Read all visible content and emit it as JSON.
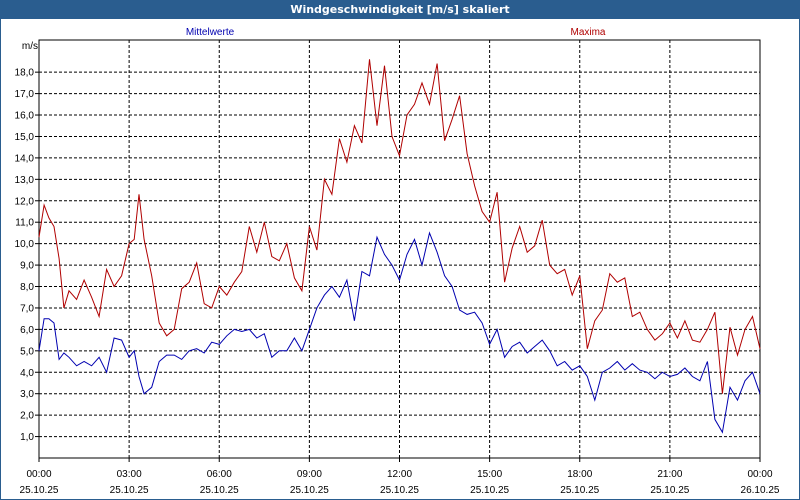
{
  "window": {
    "title": "Windgeschwindigkeit [m/s] skaliert"
  },
  "chart_data": {
    "type": "line",
    "title": "Windgeschwindigkeit [m/s] skaliert",
    "ylabel": "m/s",
    "ylim": [
      0,
      19.5
    ],
    "yticks": [
      1.0,
      2.0,
      3.0,
      4.0,
      5.0,
      6.0,
      7.0,
      8.0,
      9.0,
      10.0,
      11.0,
      12.0,
      13.0,
      14.0,
      15.0,
      16.0,
      17.0,
      18.0
    ],
    "ytick_labels": [
      "1,0",
      "2,0",
      "3,0",
      "4,0",
      "5,0",
      "6,0",
      "7,0",
      "8,0",
      "9,0",
      "10,0",
      "11,0",
      "12,0",
      "13,0",
      "14,0",
      "15,0",
      "16,0",
      "17,0",
      "18,0"
    ],
    "xlim_hours": [
      0,
      24
    ],
    "xticks_hours": [
      0,
      3,
      6,
      9,
      12,
      15,
      18,
      21,
      24
    ],
    "xtick_labels": [
      {
        "time": "00:00",
        "date": "25.10.25"
      },
      {
        "time": "03:00",
        "date": "25.10.25"
      },
      {
        "time": "06:00",
        "date": "25.10.25"
      },
      {
        "time": "09:00",
        "date": "25.10.25"
      },
      {
        "time": "12:00",
        "date": "25.10.25"
      },
      {
        "time": "15:00",
        "date": "25.10.25"
      },
      {
        "time": "18:00",
        "date": "25.10.25"
      },
      {
        "time": "21:00",
        "date": "25.10.25"
      },
      {
        "time": "00:00",
        "date": "26.10.25"
      }
    ],
    "grid": true,
    "series": [
      {
        "name": "Mittelwerte",
        "color": "#0000b0",
        "x_hours": [
          0,
          0.17,
          0.33,
          0.5,
          0.67,
          0.83,
          1,
          1.25,
          1.5,
          1.75,
          2,
          2.25,
          2.5,
          2.75,
          3,
          3.17,
          3.33,
          3.5,
          3.75,
          4,
          4.25,
          4.5,
          4.75,
          5,
          5.25,
          5.5,
          5.75,
          6,
          6.25,
          6.5,
          6.75,
          7,
          7.25,
          7.5,
          7.75,
          8,
          8.25,
          8.5,
          8.75,
          9,
          9.25,
          9.5,
          9.75,
          10,
          10.25,
          10.5,
          10.75,
          11,
          11.25,
          11.5,
          11.75,
          12,
          12.25,
          12.5,
          12.75,
          13,
          13.25,
          13.5,
          13.75,
          14,
          14.25,
          14.5,
          14.75,
          15,
          15.25,
          15.5,
          15.75,
          16,
          16.25,
          16.5,
          16.75,
          17,
          17.25,
          17.5,
          17.75,
          18,
          18.25,
          18.5,
          18.75,
          19,
          19.25,
          19.5,
          19.75,
          20,
          20.25,
          20.5,
          20.75,
          21,
          21.25,
          21.5,
          21.75,
          22,
          22.25,
          22.5,
          22.75,
          23,
          23.25,
          23.5,
          23.75,
          24
        ],
        "values": [
          5.0,
          6.5,
          6.5,
          6.3,
          4.6,
          4.9,
          4.7,
          4.3,
          4.5,
          4.3,
          4.7,
          4.0,
          5.6,
          5.5,
          4.7,
          5.0,
          3.8,
          3.0,
          3.3,
          4.5,
          4.8,
          4.8,
          4.6,
          5.0,
          5.1,
          4.9,
          5.4,
          5.3,
          5.7,
          6.0,
          5.9,
          6.0,
          5.6,
          5.8,
          4.7,
          5.0,
          5.0,
          5.6,
          5.0,
          6.0,
          7.0,
          7.6,
          8.0,
          7.5,
          8.3,
          6.4,
          8.7,
          8.5,
          10.3,
          9.5,
          9.0,
          8.3,
          9.5,
          10.2,
          9.0,
          10.5,
          9.6,
          8.5,
          8.0,
          6.9,
          6.7,
          6.8,
          6.3,
          5.3,
          6.0,
          4.7,
          5.2,
          5.4,
          4.9,
          5.2,
          5.5,
          5.0,
          4.3,
          4.5,
          4.1,
          4.3,
          3.8,
          2.7,
          4.0,
          4.2,
          4.5,
          4.1,
          4.4,
          4.1,
          4.0,
          3.7,
          4.0,
          3.8,
          3.9,
          4.2,
          3.8,
          3.6,
          4.5,
          1.8,
          1.2,
          3.3,
          2.7,
          3.6,
          4.0,
          3.0
        ]
      },
      {
        "name": "Maxima",
        "color": "#b00000",
        "x_hours": [
          0,
          0.17,
          0.33,
          0.5,
          0.67,
          0.83,
          1,
          1.25,
          1.5,
          1.75,
          2,
          2.25,
          2.5,
          2.75,
          3,
          3.17,
          3.33,
          3.5,
          3.75,
          4,
          4.25,
          4.5,
          4.75,
          5,
          5.25,
          5.5,
          5.75,
          6,
          6.25,
          6.5,
          6.75,
          7,
          7.25,
          7.5,
          7.75,
          8,
          8.25,
          8.5,
          8.75,
          9,
          9.25,
          9.5,
          9.75,
          10,
          10.25,
          10.5,
          10.75,
          11,
          11.25,
          11.5,
          11.75,
          12,
          12.25,
          12.5,
          12.75,
          13,
          13.25,
          13.5,
          13.75,
          14,
          14.25,
          14.5,
          14.75,
          15,
          15.25,
          15.5,
          15.75,
          16,
          16.25,
          16.5,
          16.75,
          17,
          17.25,
          17.5,
          17.75,
          18,
          18.25,
          18.5,
          18.75,
          19,
          19.25,
          19.5,
          19.75,
          20,
          20.25,
          20.5,
          20.75,
          21,
          21.25,
          21.5,
          21.75,
          22,
          22.25,
          22.5,
          22.75,
          23,
          23.25,
          23.5,
          23.75,
          24
        ],
        "values": [
          10.3,
          11.8,
          11.2,
          10.8,
          9.3,
          7.0,
          7.8,
          7.4,
          8.3,
          7.5,
          6.6,
          8.8,
          8.0,
          8.5,
          10.0,
          10.2,
          12.3,
          10.2,
          8.5,
          6.3,
          5.7,
          6.0,
          7.9,
          8.2,
          9.1,
          7.2,
          7.0,
          8.0,
          7.6,
          8.2,
          8.7,
          10.8,
          9.6,
          11.0,
          9.4,
          9.2,
          10.0,
          8.4,
          7.8,
          10.8,
          9.7,
          13.0,
          12.3,
          14.9,
          13.8,
          15.5,
          14.7,
          18.6,
          15.5,
          18.3,
          15.0,
          14.1,
          16.0,
          16.5,
          17.5,
          16.5,
          18.4,
          14.8,
          15.8,
          16.9,
          14.2,
          12.7,
          11.5,
          11.0,
          12.4,
          8.2,
          9.8,
          10.8,
          9.6,
          9.9,
          11.1,
          9.0,
          8.6,
          8.8,
          7.6,
          8.5,
          5.1,
          6.4,
          6.9,
          8.6,
          8.2,
          8.4,
          6.6,
          6.8,
          6.0,
          5.5,
          5.8,
          6.3,
          5.6,
          6.4,
          5.5,
          5.4,
          6.0,
          6.8,
          3.0,
          6.1,
          4.8,
          6.0,
          6.6,
          5.1
        ]
      }
    ]
  }
}
